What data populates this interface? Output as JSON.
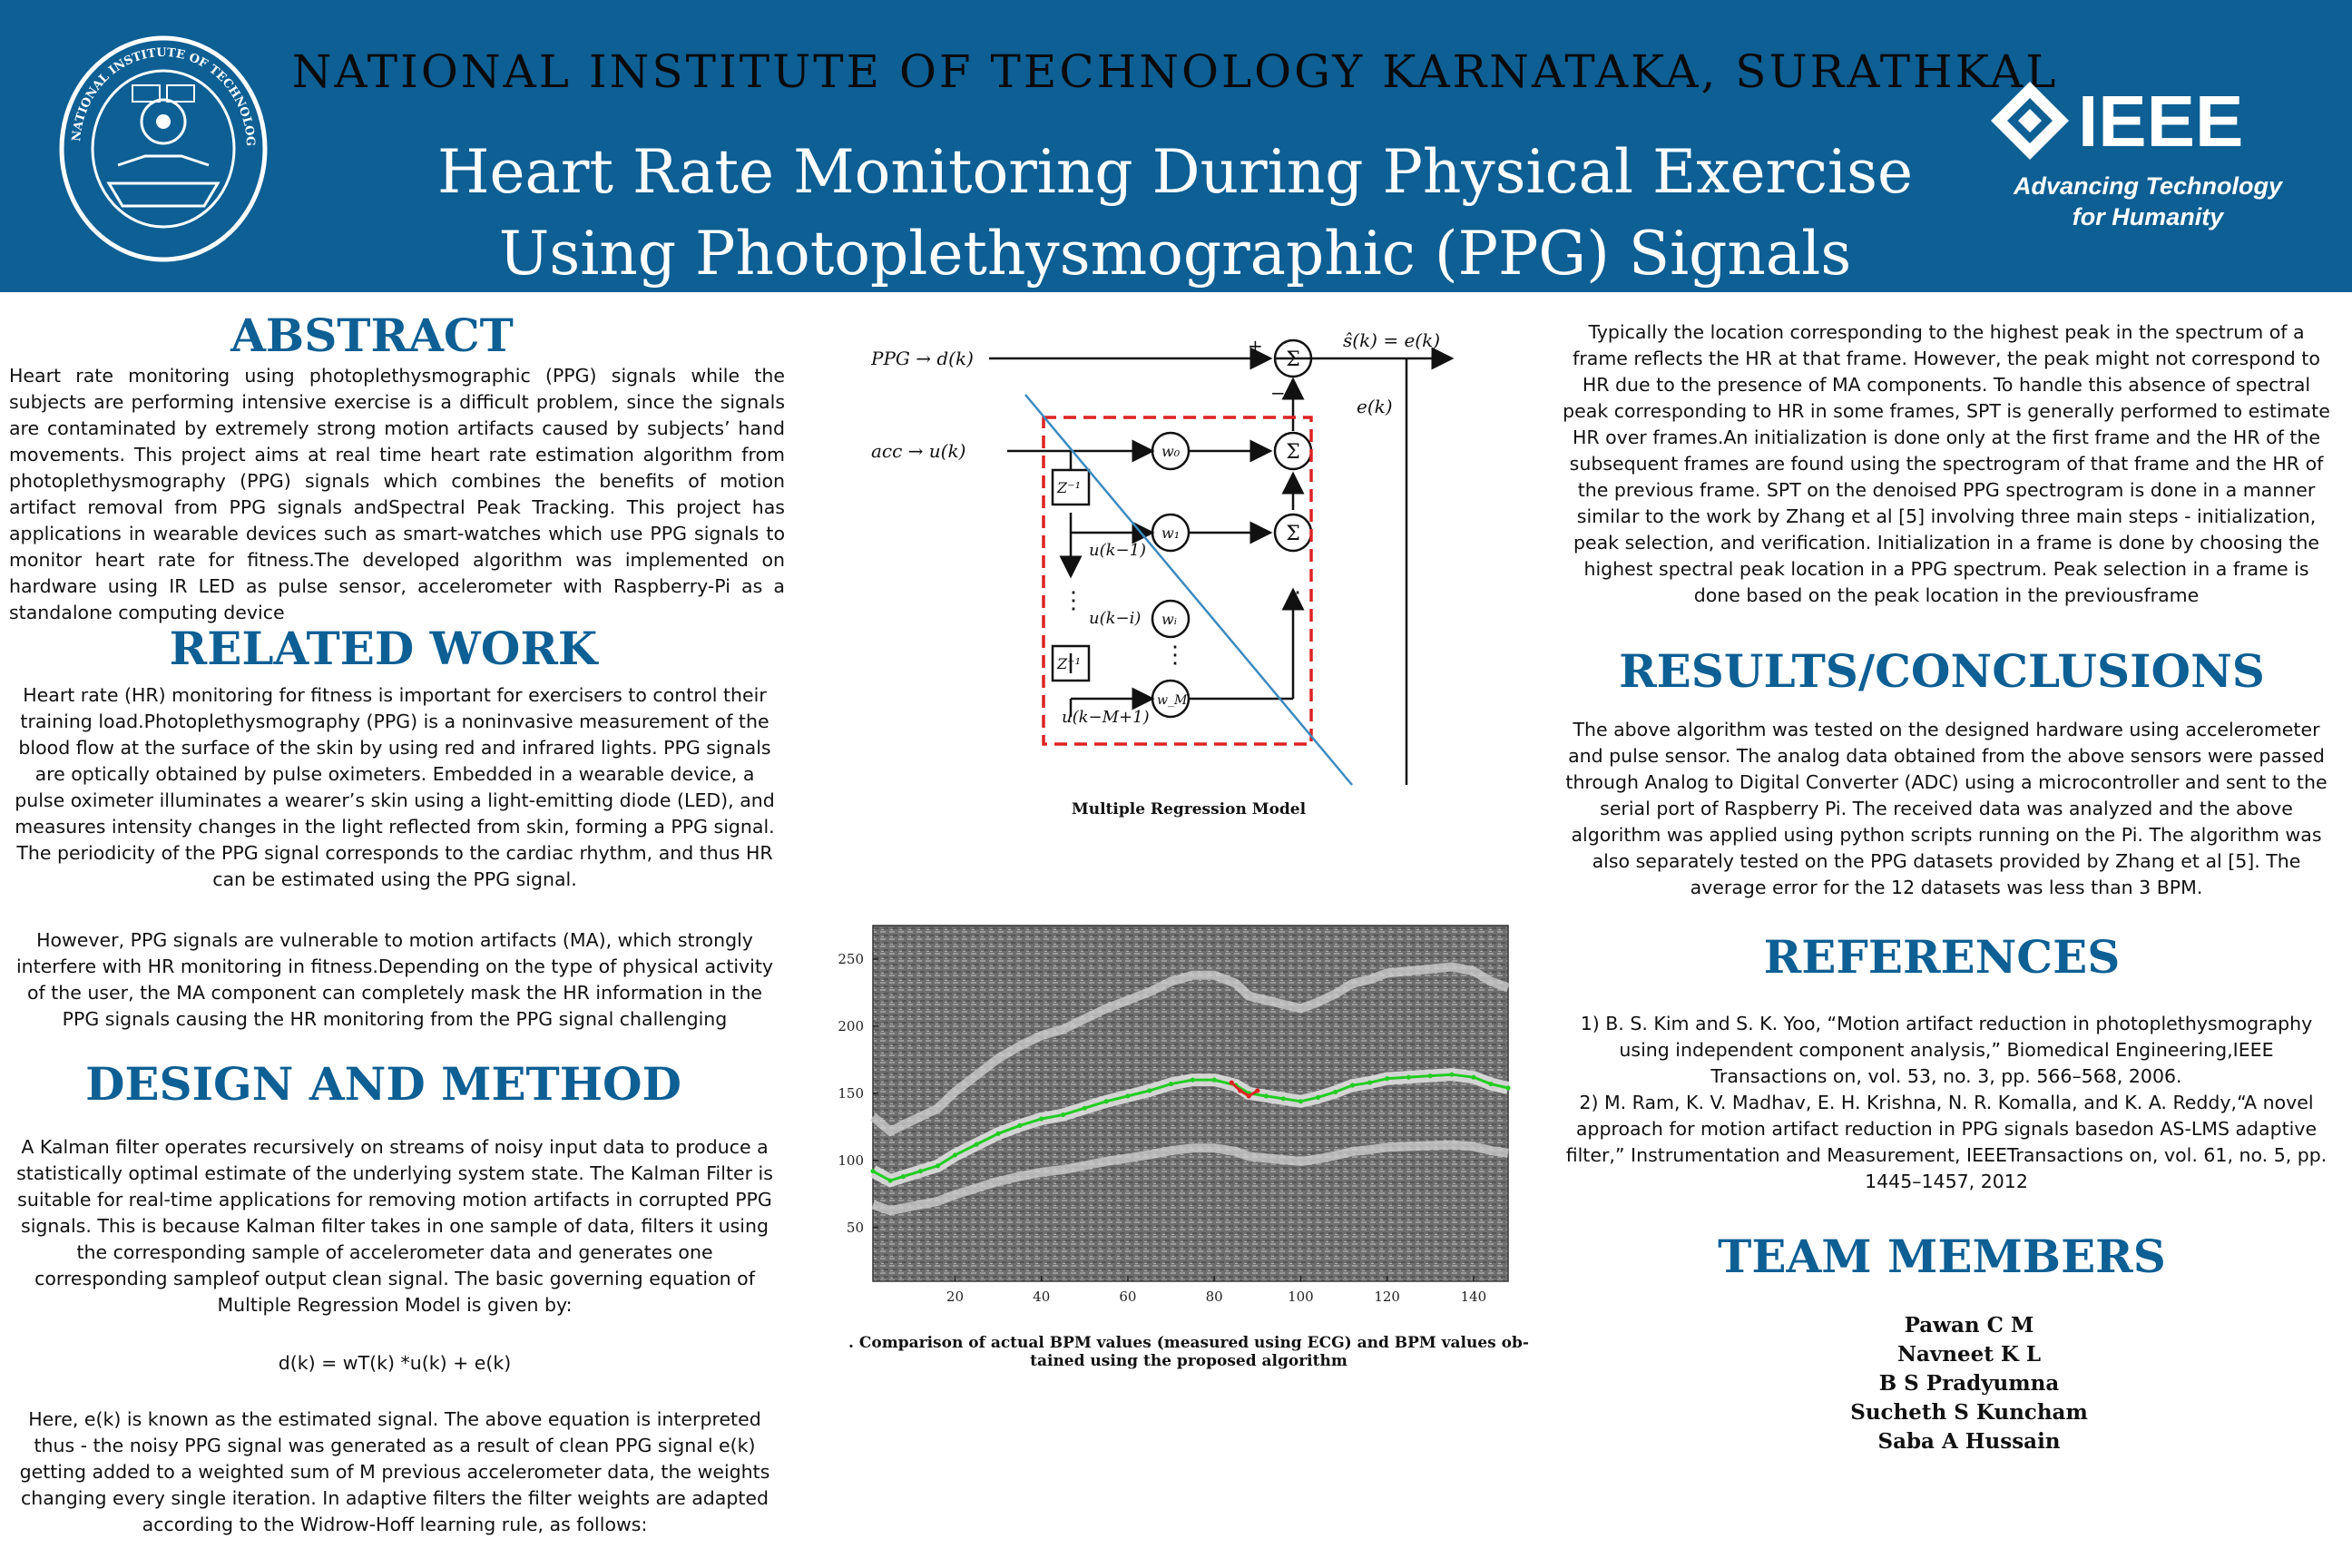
{
  "header": {
    "institute": "NATIONAL INSTITUTE OF TECHNOLOGY KARNATAKA, SURATHKAL",
    "title_line1": "Heart Rate Monitoring During Physical Exercise",
    "title_line2": "Using Photoplethysmographic (PPG) Signals",
    "ieee_logo_text": "IEEE",
    "ieee_tagline_line1": "Advancing Technology",
    "ieee_tagline_line2": "for Humanity",
    "nitk_seal_text": "NATIONAL INSTITUTE OF TECHNOLOGY KARNATAKA, SURATHKAL"
  },
  "abstract": {
    "heading": "ABSTRACT",
    "body": "Heart rate monitoring using photoplethysmographic (PPG) signals while the subjects are performing intensive exercise is a difficult problem, since the signals are contaminated by extremely strong motion artifacts caused by subjects’ hand movements. This project aims at real time heart rate estimation algorithm from photoplethysmography (PPG) signals which combines the benefits of motion artifact removal from PPG signals andSpectral Peak Tracking. This project has applications in wearable devices such as smart-watches which use PPG signals to monitor heart rate for fitness.The developed algorithm was implemented on hardware using IR LED as pulse sensor, accelerometer with Raspberry-Pi as a standalone computing device"
  },
  "related_work": {
    "heading": "RELATED WORK",
    "para1": "Heart rate (HR) monitoring for fitness is important for exercisers to control their training load.Photoplethysmography (PPG) is a noninvasive measurement of the blood flow at the surface of the skin by using red and infrared lights. PPG signals are optically obtained by pulse oximeters. Embedded in a wearable device, a pulse oximeter illuminates a wearer’s skin using a light-emitting diode (LED), and measures intensity changes in the light reflected from skin, forming a PPG signal. The periodicity of the PPG signal corresponds to the cardiac rhythm, and thus HR can be estimated using the PPG signal.",
    "para2": "However, PPG signals are vulnerable to motion artifacts (MA), which strongly interfere with HR monitoring in fitness.Depending on the type of physical activity of the user, the MA component can completely mask the HR information in the PPG signals causing the HR monitoring from the PPG signal challenging"
  },
  "design": {
    "heading": "DESIGN AND METHOD",
    "para1": "A Kalman filter operates recursively on streams of noisy input data to produce a statistically optimal estimate of the underlying system state. The Kalman Filter is suitable for real-time applications for removing motion artifacts in corrupted PPG signals. This is because Kalman filter takes in one sample of data, filters it using the corresponding sample of accelerometer data and generates one corresponding sampleof output clean signal. The basic governing equation of Multiple Regression Model is given by:",
    "equation": "d(k) = wT(k) *u(k) + e(k)",
    "para2": "Here, e(k) is known as the estimated signal. The above equation is interpreted thus - the noisy PPG signal was generated as a result of clean PPG signal e(k) getting added to a weighted sum of M previous accelerometer data, the weights changing every single iteration. In adaptive filters the filter weights are adapted according to the Widrow-Hoff learning rule, as follows:"
  },
  "figure1": {
    "caption": "Multiple Regression Model",
    "ppg_label": "PPG → d(k)",
    "acc_label": "acc → u(k)",
    "output_label": "ŝ(k) = e(k)",
    "error_label": "e(k)",
    "plus": "+",
    "minus": "−",
    "sum": "Σ",
    "delay": "Z⁻¹",
    "w0": "w₀",
    "w1": "w₁",
    "wi": "wᵢ",
    "wm": "w_M",
    "u1": "u(k−1)",
    "ui": "u(k−i)",
    "um": "u(k−M+1)",
    "dots": "⋮"
  },
  "figure2": {
    "caption_line1": ". Comparison of actual BPM values (measured using ECG) and BPM values ob-",
    "caption_line2": "tained using the proposed algorithm"
  },
  "chart_data": {
    "type": "line",
    "title": "",
    "xlabel": "",
    "ylabel": "",
    "xlim": [
      1,
      148
    ],
    "ylim": [
      10,
      275
    ],
    "xticks": [
      "20",
      "40",
      "60",
      "80",
      "100",
      "120",
      "140"
    ],
    "yticks": [
      "50",
      "100",
      "150",
      "200",
      "250"
    ],
    "series": [
      {
        "color": "#22cc22",
        "x": [
          1,
          5,
          8,
          12,
          16,
          20,
          25,
          30,
          35,
          40,
          45,
          50,
          55,
          60,
          65,
          70,
          75,
          80,
          85,
          88,
          92,
          96,
          100,
          104,
          108,
          112,
          116,
          120,
          125,
          130,
          135,
          140,
          144,
          148
        ],
        "y": [
          92,
          85,
          88,
          92,
          96,
          104,
          112,
          120,
          126,
          131,
          134,
          139,
          144,
          148,
          152,
          157,
          160,
          160,
          156,
          150,
          148,
          146,
          144,
          147,
          151,
          156,
          158,
          161,
          162,
          163,
          164,
          162,
          157,
          154
        ]
      },
      {
        "color": "#dd2222",
        "x": [
          84,
          86,
          88,
          90
        ],
        "y": [
          158,
          152,
          148,
          152
        ]
      }
    ]
  },
  "results_intro": {
    "body": "Typically the location corresponding to the highest peak in the spectrum of a frame reflects the HR at that frame. However, the peak might not correspond to HR due to the presence of MA components. To handle this absence of spectral peak corresponding to HR in some frames, SPT is generally performed to estimate HR over frames.An initialization is done only at the first frame and the HR of the subsequent frames are found using the spectrogram of that frame and the HR of the previous frame. SPT on the denoised PPG spectrogram is done in a manner similar to the work by Zhang et al [5] involving three main steps - initialization, peak selection, and verification. Initialization in a frame is done by choosing the highest spectral peak location in a PPG spectrum. Peak selection in a frame is done based on the peak location in the previousframe"
  },
  "results": {
    "heading": "RESULTS/CONCLUSIONS",
    "body": "The above algorithm was tested on the designed hardware using accelerometer and pulse sensor. The analog data obtained from the above sensors were passed through Analog to Digital Converter (ADC) using a microcontroller and sent to the serial port of Raspberry Pi. The received data was analyzed and the above algorithm was applied using python scripts running on the Pi. The algorithm was also separately tested on the PPG datasets provided by Zhang et al [5]. The average error for the 12 datasets was less than 3 BPM."
  },
  "references": {
    "heading": "REFERENCES",
    "ref1": "1) B. S. Kim and S. K. Yoo, “Motion artifact reduction in photoplethysmography using independent component analysis,” Biomedical Engineering,IEEE Transactions on, vol. 53, no. 3, pp. 566–568, 2006.",
    "ref2": "2) M. Ram, K. V. Madhav, E. H. Krishna, N. R. Komalla, and K. A. Reddy,“A novel approach for motion artifact reduction in PPG signals basedon AS-LMS adaptive filter,” Instrumentation and Measurement, IEEETransactions on, vol. 61, no. 5, pp. 1445–1457, 2012"
  },
  "team": {
    "heading": "TEAM MEMBERS",
    "members": [
      "Pawan C M",
      "Navneet K L",
      "B S Pradyumna",
      "Sucheth S Kuncham",
      "Saba A Hussain"
    ]
  }
}
